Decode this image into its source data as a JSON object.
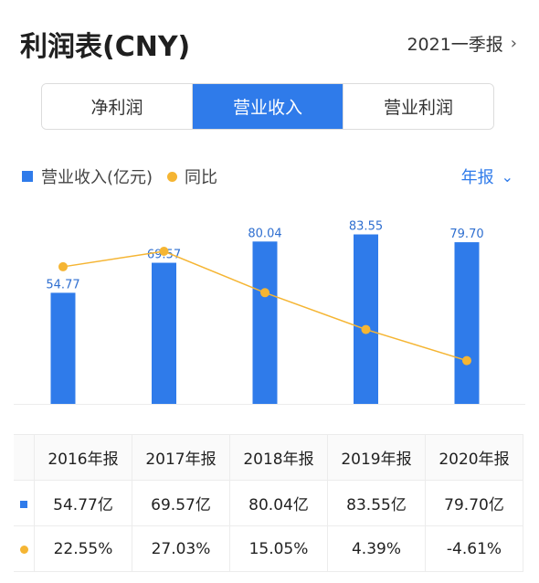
{
  "header": {
    "title": "利润表(CNY)",
    "period": "2021一季报"
  },
  "tabs": [
    {
      "label": "净利润",
      "active": false
    },
    {
      "label": "营业收入",
      "active": true
    },
    {
      "label": "营业利润",
      "active": false
    }
  ],
  "legend": {
    "bar_label": "营业收入(亿元)",
    "line_label": "同比",
    "period_selector": "年报"
  },
  "colors": {
    "accent": "#2f7bea",
    "line": "#f5b533",
    "positive": "#d9434b",
    "negative": "#1f9f5e"
  },
  "chart_data": {
    "type": "bar",
    "categories": [
      "2016年报",
      "2017年报",
      "2018年报",
      "2019年报",
      "2020年报"
    ],
    "series": [
      {
        "name": "营业收入(亿元)",
        "type": "bar",
        "values": [
          54.77,
          69.57,
          80.04,
          83.55,
          79.7
        ],
        "labels": [
          "54.77",
          "69.57",
          "80.04",
          "83.55",
          "79.70"
        ]
      },
      {
        "name": "同比",
        "type": "line",
        "values": [
          22.55,
          27.03,
          15.05,
          4.39,
          -4.61
        ]
      }
    ]
  },
  "table": {
    "headers": [
      "2016年报",
      "2017年报",
      "2018年报",
      "2019年报",
      "2020年报"
    ],
    "revenue_row": [
      "54.77亿",
      "69.57亿",
      "80.04亿",
      "83.55亿",
      "79.70亿"
    ],
    "yoy_row": [
      "22.55%",
      "27.03%",
      "15.05%",
      "4.39%",
      "-4.61%"
    ]
  }
}
